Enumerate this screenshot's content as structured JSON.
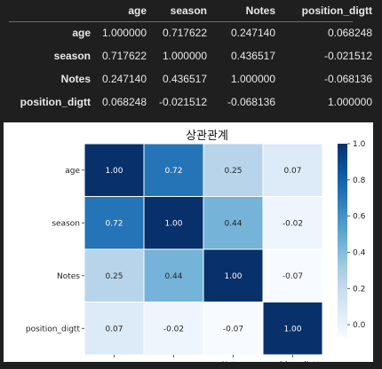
{
  "table": {
    "columns": [
      "age",
      "season",
      "Notes",
      "position_digtt"
    ],
    "rows": [
      {
        "index": "age",
        "values": [
          "1.000000",
          "0.717622",
          "0.247140",
          "0.068248"
        ]
      },
      {
        "index": "season",
        "values": [
          "0.717622",
          "1.000000",
          "0.436517",
          "-0.021512"
        ]
      },
      {
        "index": "Notes",
        "values": [
          "0.247140",
          "0.436517",
          "1.000000",
          "-0.068136"
        ]
      },
      {
        "index": "position_digtt",
        "values": [
          "0.068248",
          "-0.021512",
          "-0.068136",
          "1.000000"
        ]
      }
    ]
  },
  "chart_data": {
    "type": "heatmap",
    "title": "상관관계",
    "x_categories": [
      "age",
      "season",
      "Notes",
      "position_digtt"
    ],
    "y_categories": [
      "age",
      "season",
      "Notes",
      "position_digtt"
    ],
    "values": [
      [
        1.0,
        0.72,
        0.25,
        0.07
      ],
      [
        0.72,
        1.0,
        0.44,
        -0.02
      ],
      [
        0.25,
        0.44,
        1.0,
        -0.07
      ],
      [
        0.07,
        -0.02,
        -0.07,
        1.0
      ]
    ],
    "value_labels": [
      [
        "1.00",
        "0.72",
        "0.25",
        "0.07"
      ],
      [
        "0.72",
        "1.00",
        "0.44",
        "-0.02"
      ],
      [
        "0.25",
        "0.44",
        "1.00",
        "-0.07"
      ],
      [
        "0.07",
        "-0.02",
        "-0.07",
        "1.00"
      ]
    ],
    "colormap": "Blues",
    "colorbar": {
      "range": [
        -0.068136,
        1.0
      ],
      "ticks": [
        "0.0",
        "0.2",
        "0.4",
        "0.6",
        "0.8",
        "1.0"
      ]
    }
  }
}
